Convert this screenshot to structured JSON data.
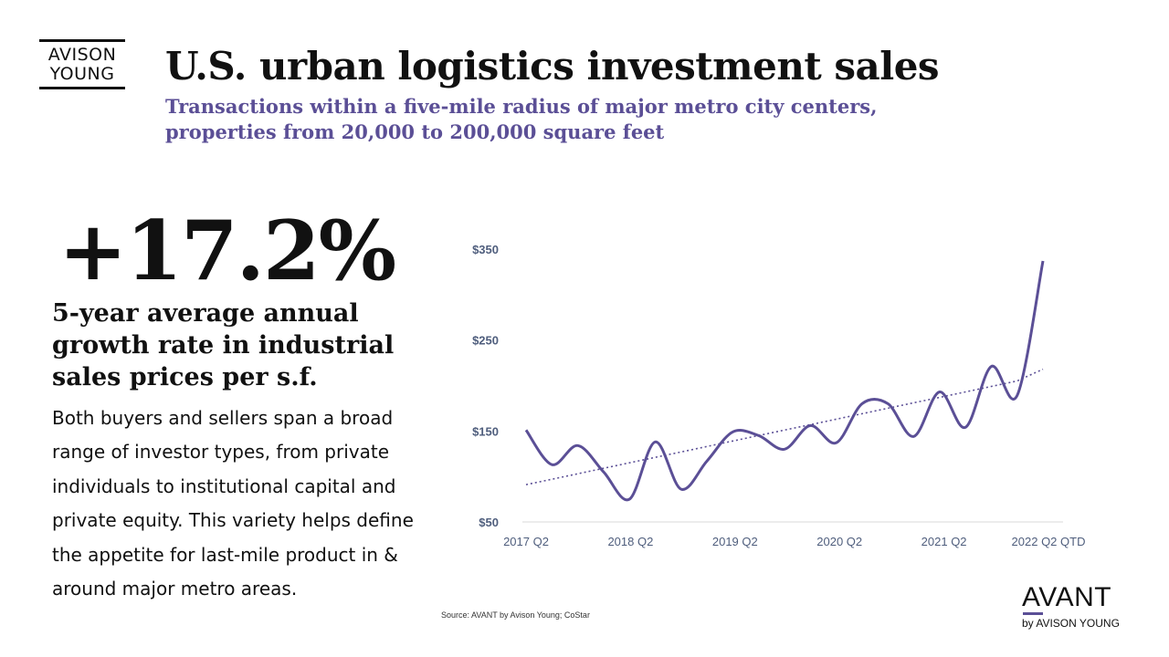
{
  "logo": {
    "line1": "AVISON",
    "line2": "YOUNG"
  },
  "header": {
    "title": "U.S. urban logistics investment sales",
    "subtitle": "Transactions within a five-mile radius of major metro city centers, properties from 20,000 to 200,000 square feet"
  },
  "kpi": {
    "value": "+17.2%",
    "label": "5-year average annual growth rate in industrial sales prices per s.f.",
    "body": "Both buyers and sellers span a broad range of investor types, from private individuals to institutional capital and private equity. This variety helps define the appetite for last-mile product in & around major metro areas."
  },
  "source": "Source: AVANT by Avison Young; CoStar",
  "brand": {
    "word": "AVANT",
    "by": "by AVISON YOUNG"
  },
  "colors": {
    "accent": "#5b4f96",
    "tick": "#4f5e7d"
  },
  "chart_data": {
    "type": "line",
    "title": "",
    "xlabel": "",
    "ylabel": "",
    "x_tick_labels": [
      "2017 Q2",
      "2018 Q2",
      "2019 Q2",
      "2020 Q2",
      "2021 Q2",
      "2022 Q2 QTD"
    ],
    "y_tick_labels": [
      "$350",
      "$250",
      "$150",
      "$50"
    ],
    "y_tick_values": [
      350,
      250,
      150,
      50
    ],
    "ylim": [
      50,
      350
    ],
    "grid": false,
    "legend": "none",
    "series": [
      {
        "values": [
          151,
          113,
          134,
          105,
          75,
          138,
          86,
          117,
          149,
          145,
          130,
          156,
          137,
          180,
          180,
          144,
          193,
          154,
          221,
          189,
          337
        ],
        "color": "#5b4f96",
        "style": "smooth"
      },
      {
        "values": [
          91,
          97,
          103,
          109,
          115,
          121,
          127,
          133,
          139,
          145,
          151,
          157,
          163,
          169,
          175,
          181,
          187,
          193,
          199,
          205,
          218
        ],
        "color": "#5b4f96",
        "style": "dotted",
        "role": "trendline"
      }
    ]
  }
}
